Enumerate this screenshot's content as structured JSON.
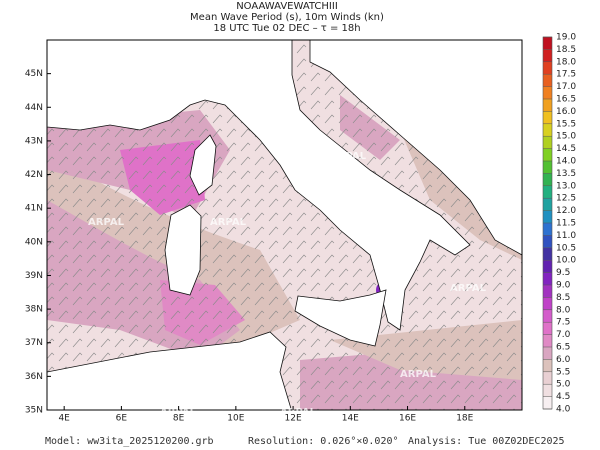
{
  "header": {
    "lines": [
      "NOAAWAVEWATCHIII",
      "Mean Wave Period (s), 10m Winds (kn)",
      "18 UTC Tue 02 DEC  –  τ = 18h"
    ]
  },
  "map": {
    "lon_range": [
      3.4,
      20
    ],
    "lat_range": [
      35,
      46
    ],
    "watermark": "ARPAL",
    "lon_ticks": [
      {
        "value": 4,
        "label": "4E"
      },
      {
        "value": 6,
        "label": "6E"
      },
      {
        "value": 8,
        "label": "8E"
      },
      {
        "value": 10,
        "label": "10E"
      },
      {
        "value": 12,
        "label": "12E"
      },
      {
        "value": 14,
        "label": "14E"
      },
      {
        "value": 16,
        "label": "16E"
      },
      {
        "value": 18,
        "label": "18E"
      }
    ],
    "lat_ticks": [
      {
        "value": 35,
        "label": "35N"
      },
      {
        "value": 36,
        "label": "36N"
      },
      {
        "value": 37,
        "label": "37N"
      },
      {
        "value": 38,
        "label": "38N"
      },
      {
        "value": 39,
        "label": "39N"
      },
      {
        "value": 40,
        "label": "40N"
      },
      {
        "value": 41,
        "label": "41N"
      },
      {
        "value": 42,
        "label": "42N"
      },
      {
        "value": 43,
        "label": "43N"
      },
      {
        "value": 44,
        "label": "44N"
      },
      {
        "value": 45,
        "label": "45N"
      }
    ]
  },
  "colorbar": {
    "ticks": [
      {
        "value": 4,
        "label": "4.0"
      },
      {
        "value": 4.5,
        "label": "4.5"
      },
      {
        "value": 5,
        "label": "5.0"
      },
      {
        "value": 5.5,
        "label": "5.5"
      },
      {
        "value": 6,
        "label": "6.0"
      },
      {
        "value": 6.5,
        "label": "6.5"
      },
      {
        "value": 7,
        "label": "7.0"
      },
      {
        "value": 7.5,
        "label": "7.5"
      },
      {
        "value": 8,
        "label": "8.0"
      },
      {
        "value": 8.5,
        "label": "8.5"
      },
      {
        "value": 9,
        "label": "9.0"
      },
      {
        "value": 9.5,
        "label": "9.5"
      },
      {
        "value": 10,
        "label": "10.0"
      },
      {
        "value": 10.5,
        "label": "10.5"
      },
      {
        "value": 11,
        "label": "11.0"
      },
      {
        "value": 11.5,
        "label": "11.5"
      },
      {
        "value": 12,
        "label": "12.0"
      },
      {
        "value": 12.5,
        "label": "12.5"
      },
      {
        "value": 13,
        "label": "13.0"
      },
      {
        "value": 13.5,
        "label": "13.5"
      },
      {
        "value": 14,
        "label": "14.0"
      },
      {
        "value": 14.5,
        "label": "14.5"
      },
      {
        "value": 15,
        "label": "15.0"
      },
      {
        "value": 15.5,
        "label": "15.5"
      },
      {
        "value": 16,
        "label": "16.0"
      },
      {
        "value": 16.5,
        "label": "16.5"
      },
      {
        "value": 17,
        "label": "17.0"
      },
      {
        "value": 17.5,
        "label": "17.5"
      },
      {
        "value": 18,
        "label": "18.0"
      },
      {
        "value": 18.5,
        "label": "18.5"
      },
      {
        "value": 19,
        "label": "19.0"
      }
    ],
    "colors": [
      "#f7eff1",
      "#f0dfe1",
      "#e9d0d3",
      "#dcc2bc",
      "#d9a6c1",
      "#e08ac5",
      "#df72c8",
      "#d45dcb",
      "#c042c8",
      "#a232c0",
      "#8224c0",
      "#6222b0",
      "#4232a2",
      "#3052c0",
      "#2e72d0",
      "#2090c0",
      "#20a2a0",
      "#22b080",
      "#32b252",
      "#52c032",
      "#80d022",
      "#b0d020",
      "#d8d020",
      "#f0c020",
      "#f0a020",
      "#f08020",
      "#e86020",
      "#e04020",
      "#d02020",
      "#c01020"
    ]
  },
  "footer": {
    "model": "Model: ww3ita_2025120200.grb",
    "resolution": "Resolution: 0.026°×0.020°",
    "analysis": "Analysis: Tue 00Z02DEC2025"
  }
}
